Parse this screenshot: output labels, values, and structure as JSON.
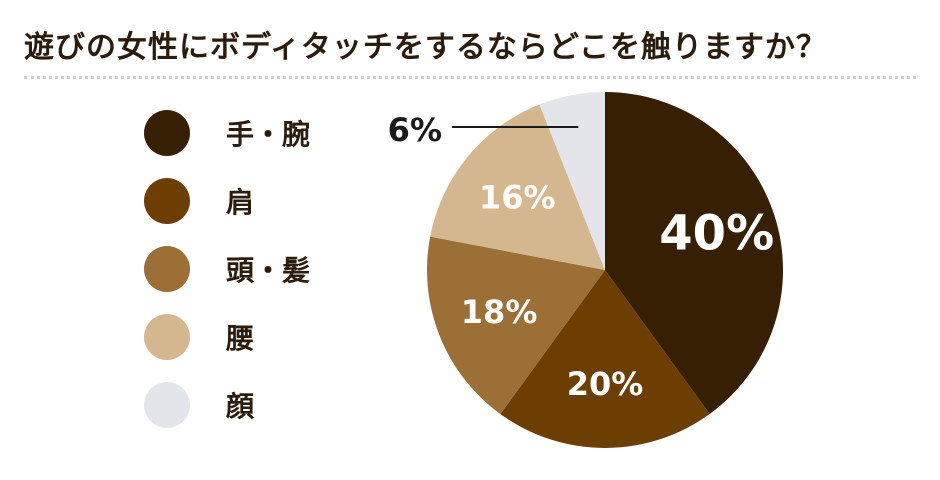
{
  "header": {
    "title": "遊びの女性にボディタッチをするならどこを触りますか？"
  },
  "chart_data": {
    "type": "pie",
    "title": "遊びの女性にボディタッチをするならどこを触りますか？",
    "categories": [
      "手・腕",
      "肩",
      "頭・髪",
      "腰",
      "顔"
    ],
    "values": [
      40,
      20,
      18,
      16,
      6
    ],
    "labels": [
      "40%",
      "20%",
      "18%",
      "16%",
      "6%"
    ],
    "colors": [
      "#361f03",
      "#6c3e02",
      "#9b6f35",
      "#d5b78f",
      "#e3e5ea"
    ],
    "label_colors": [
      "#ffffff",
      "#ffffff",
      "#ffffff",
      "#ffffff",
      "#1a1a1a"
    ],
    "start_angle": "12 o'clock",
    "direction": "clockwise",
    "legend_position": "left"
  }
}
